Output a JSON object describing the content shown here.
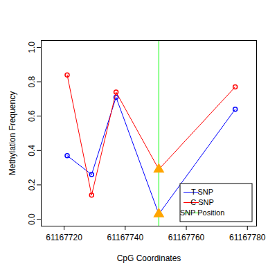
{
  "chart_data": {
    "type": "line",
    "x_label": "CpG Coordinates",
    "y_label": "Methylation Frequency",
    "x": [
      61167721,
      61167729,
      61167737,
      61167751,
      61167776
    ],
    "xlim": [
      61167712.5,
      61167783
    ],
    "xticks": [
      61167720,
      61167740,
      61167760,
      61167780
    ],
    "ylim": [
      -0.04,
      1.04
    ],
    "yticks": [
      {
        "value": 0,
        "label": "0.0"
      },
      0.2,
      0.4,
      0.6,
      0.8,
      {
        "value": 1,
        "label": "1.0"
      }
    ],
    "grid": false,
    "legend": "bottom-right",
    "series": [
      {
        "name": "T SNP",
        "type": "line",
        "color": "#0000ff",
        "marker": "circle",
        "values": [
          0.37,
          0.26,
          0.71,
          0.03,
          0.64
        ]
      },
      {
        "name": "C SNP",
        "type": "line",
        "color": "#ff0000",
        "marker": "circle",
        "values": [
          0.84,
          0.14,
          0.74,
          0.29,
          0.77
        ]
      },
      {
        "name": "SNP Position",
        "type": "vline",
        "color": "#00ff00",
        "x": 61167751
      },
      {
        "type": "scatter",
        "color": "#ffa500",
        "marker": "triangle",
        "x": [
          61167751,
          61167751
        ],
        "values": [
          0.03,
          0.29
        ]
      }
    ]
  }
}
